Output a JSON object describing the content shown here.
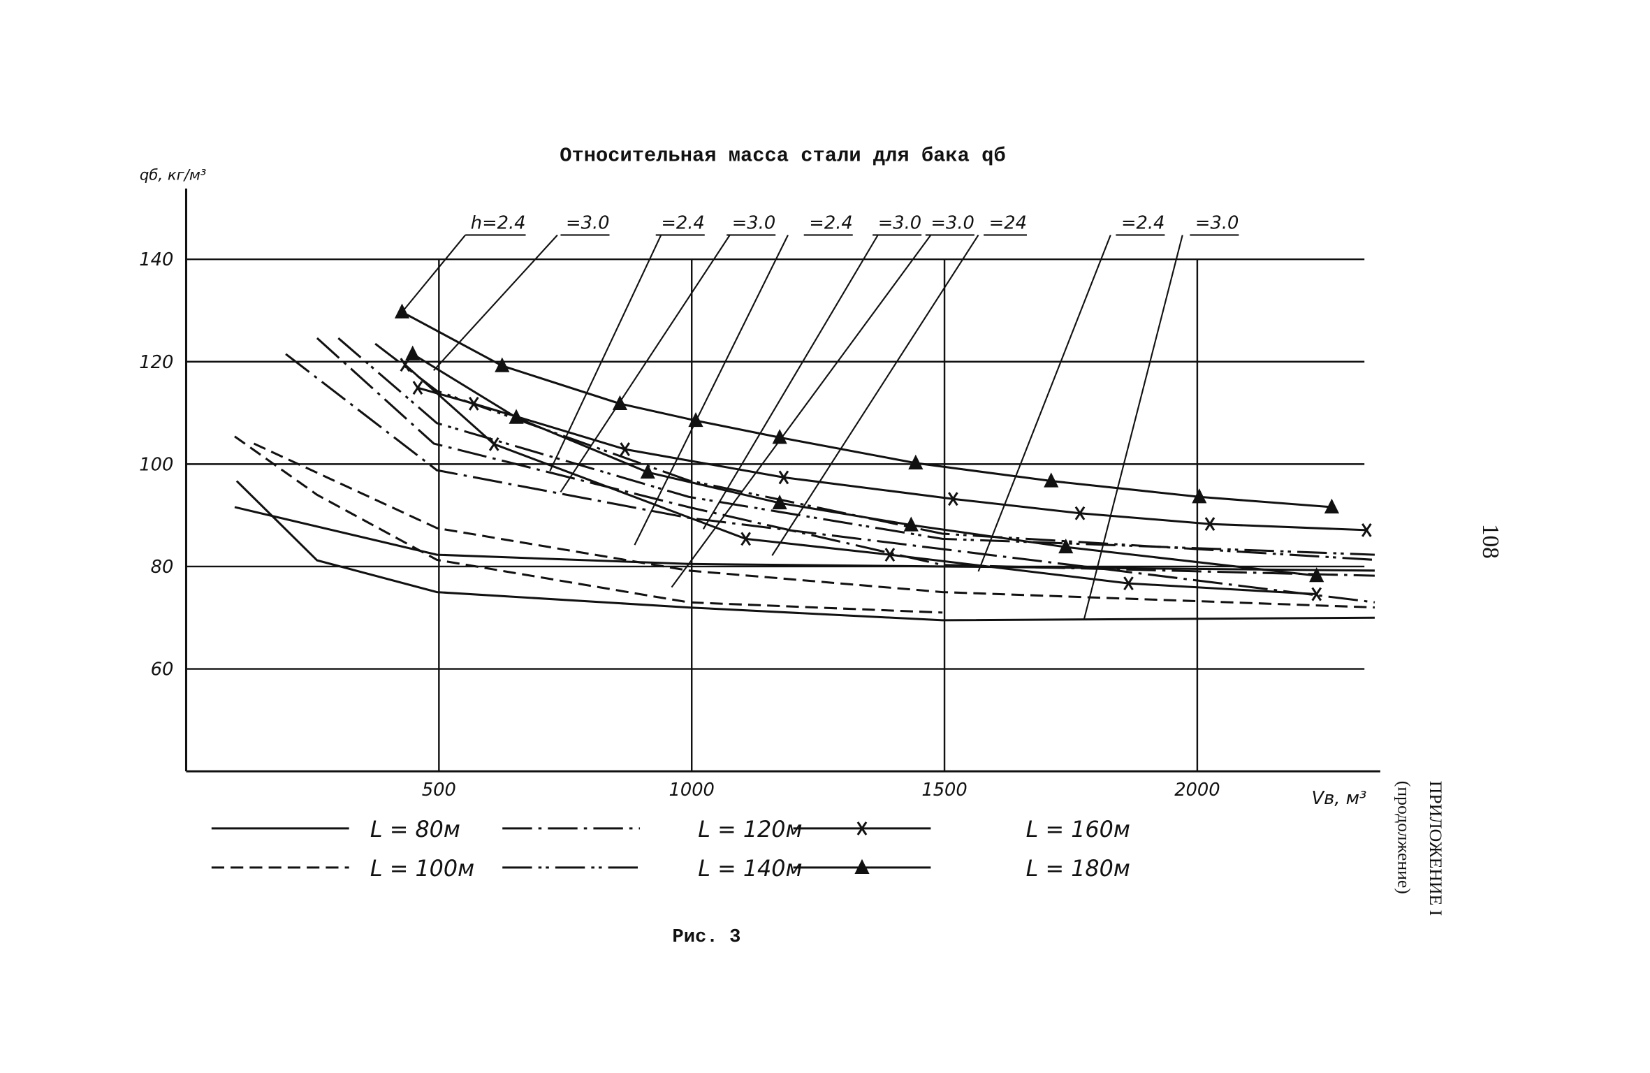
{
  "chart_data": {
    "type": "line",
    "title": "Относительная масса стали для бака qб",
    "ylabel": "qб, кг/м³",
    "xlabel": "Vв, м³",
    "caption": "Рис. 3",
    "page_number": "108",
    "appendix": "ПРИЛОЖЕНИЕ I",
    "appendix_note": "(продолжение)",
    "xlim": [
      0,
      2362
    ],
    "ylim": [
      40,
      150
    ],
    "xticks": [
      500,
      1000,
      1500,
      2000
    ],
    "yticks": [
      60,
      80,
      100,
      120,
      140
    ],
    "grid": true,
    "annotations": [
      "h=2.4",
      "=3.0",
      "=2.4",
      "=3.0",
      "=2.4",
      "=3.0",
      "=3.0",
      "=24",
      "=2.4",
      "=3.0"
    ],
    "series": [
      {
        "name": "L = 80м",
        "color": "#111111",
        "dash": "solid",
        "marker": "none",
        "curves": [
          {
            "x": [
              100,
              259,
              496,
              994,
              1496,
              2351
            ],
            "y": [
              96.7,
              81.2,
              75,
              72,
              69.5,
              70
            ]
          },
          {
            "x": [
              96,
              496,
              994,
              1496,
              2351
            ],
            "y": [
              91.6,
              82.3,
              80.5,
              80,
              79.2
            ]
          }
        ]
      },
      {
        "name": "L = 100м",
        "color": "#111111",
        "dash": "dashed",
        "marker": "none",
        "curves": [
          {
            "x": [
              96,
              259,
              496,
              994,
              1496
            ],
            "y": [
              105.4,
              94,
              81.3,
              73,
              71
            ]
          },
          {
            "x": [
              134,
              496,
              994,
              1496,
              2351
            ],
            "y": [
              104,
              87.5,
              79.2,
              75,
              72
            ]
          }
        ]
      },
      {
        "name": "L = 120м",
        "color": "#111111",
        "dash": "dashdot",
        "marker": "none",
        "curves": [
          {
            "x": [
              197,
              496,
              994,
              1496,
              2351
            ],
            "y": [
              121.5,
              98.8,
              89.5,
              83.4,
              73
            ]
          },
          {
            "x": [
              259,
              490,
              994,
              1496,
              2351
            ],
            "y": [
              124.6,
              104,
              91.6,
              80.3,
              78.2
            ]
          }
        ]
      },
      {
        "name": "L = 140м",
        "color": "#111111",
        "dash": "dashdotdot",
        "marker": "none",
        "curves": [
          {
            "x": [
              301,
              496,
              994,
              1496,
              2351
            ],
            "y": [
              124.6,
              108,
              93.6,
              85.4,
              82.3
            ]
          },
          {
            "x": [
              374,
              496,
              994,
              1496,
              2351
            ],
            "y": [
              123.5,
              114.3,
              96.8,
              86.4,
              81.3
            ]
          }
        ]
      },
      {
        "name": "L = 160м",
        "color": "#111111",
        "dash": "solid",
        "marker": "x",
        "curves": [
          {
            "x": [
              433,
              609,
              1107,
              1392,
              1864,
              2236
            ],
            "y": [
              119.4,
              103.9,
              85.4,
              82.3,
              76.7,
              74.6
            ]
          },
          {
            "x": [
              458,
              569,
              868,
              1182,
              1517,
              1768,
              2025,
              2335
            ],
            "y": [
              114.9,
              111.8,
              102.9,
              97.4,
              93.2,
              90.4,
              88.3,
              87.1
            ]
          }
        ]
      },
      {
        "name": "L = 180м",
        "color": "#111111",
        "dash": "solid",
        "marker": "triangle",
        "curves": [
          {
            "x": [
              427,
              625,
              858,
              1008,
              1174,
              1443,
              1711,
              2004,
              2266
            ],
            "y": [
              129.7,
              119.2,
              111.8,
              108.5,
              105.2,
              100.2,
              96.7,
              93.6,
              91.6
            ]
          },
          {
            "x": [
              448,
              653,
              913,
              1174,
              1434,
              1740,
              2236
            ],
            "y": [
              121.5,
              109.1,
              98.4,
              92.4,
              88.1,
              83.8,
              78.2
            ]
          }
        ]
      }
    ]
  }
}
